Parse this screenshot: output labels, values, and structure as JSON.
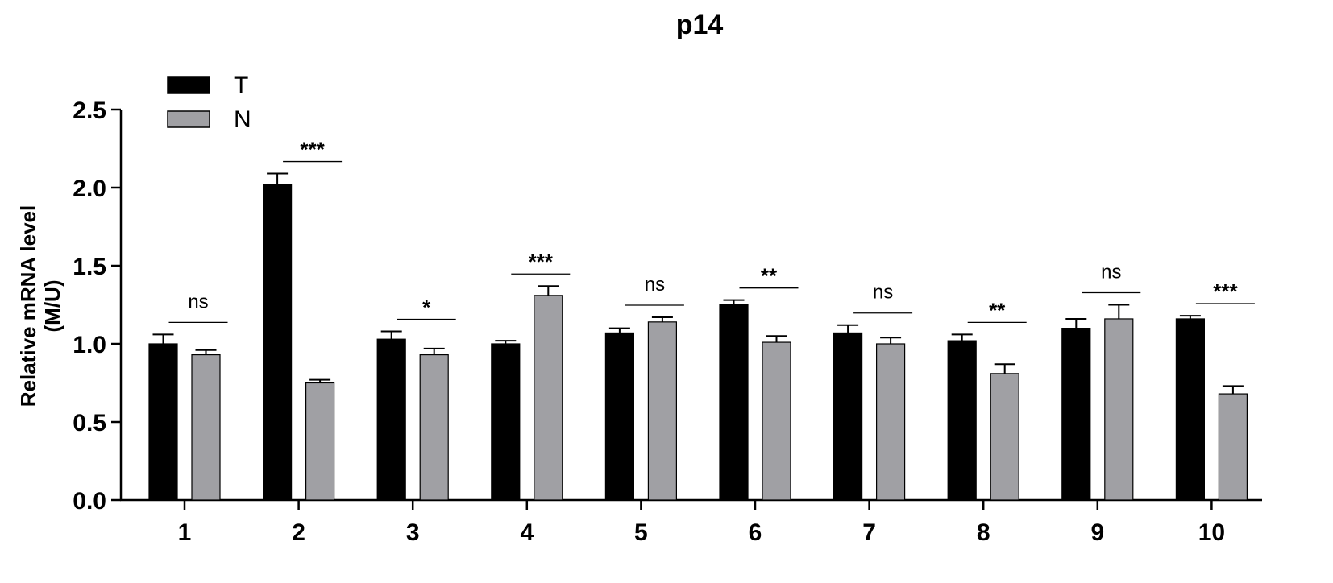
{
  "chart_data": {
    "type": "bar",
    "title": "p14",
    "ylabel_line1": "Relative mRNA level",
    "ylabel_line2": "(M/U)",
    "xlabel": "",
    "ylim": [
      0,
      2.5
    ],
    "yticks": [
      "0.0",
      "0.5",
      "1.0",
      "1.5",
      "2.0",
      "2.5"
    ],
    "categories": [
      "1",
      "2",
      "3",
      "4",
      "5",
      "6",
      "7",
      "8",
      "9",
      "10"
    ],
    "series": [
      {
        "name": "T",
        "color": "#000000",
        "values": [
          1.0,
          2.02,
          1.03,
          1.0,
          1.07,
          1.25,
          1.07,
          1.02,
          1.1,
          1.16
        ],
        "errors": [
          0.06,
          0.07,
          0.05,
          0.02,
          0.03,
          0.03,
          0.05,
          0.04,
          0.06,
          0.02
        ]
      },
      {
        "name": "N",
        "color": "#a0a0a4",
        "values": [
          0.93,
          0.75,
          0.93,
          1.31,
          1.14,
          1.01,
          1.0,
          0.81,
          1.16,
          0.68
        ],
        "errors": [
          0.03,
          0.02,
          0.04,
          0.06,
          0.03,
          0.04,
          0.04,
          0.06,
          0.09,
          0.05
        ]
      }
    ],
    "significance": [
      "ns",
      "***",
      "*",
      "***",
      "ns",
      "**",
      "ns",
      "**",
      "ns",
      "***"
    ],
    "legend_position": "top-left",
    "grid": false
  }
}
